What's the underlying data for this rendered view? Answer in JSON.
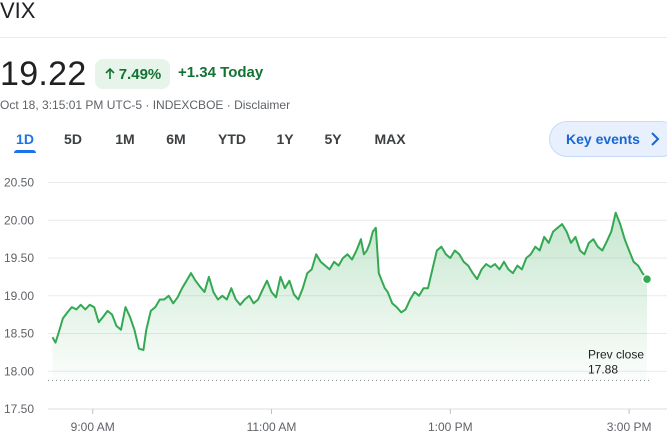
{
  "header": {
    "title": "VIX"
  },
  "quote": {
    "price": "19.22",
    "change_percent": "7.49%",
    "change_today": "+1.34",
    "today_label": "Today",
    "meta": "Oct 18, 3:15:01 PM UTC-5 · INDEXCBOE · Disclaimer"
  },
  "range_tabs": [
    "1D",
    "5D",
    "1M",
    "6M",
    "YTD",
    "1Y",
    "5Y",
    "MAX"
  ],
  "active_tab": "1D",
  "key_events_label": "Key events",
  "colors": {
    "positive": "#137333",
    "line": "#34a853",
    "accent": "#1a73e8"
  },
  "chart_data": {
    "type": "area",
    "x_tick_labels": [
      "9:00 AM",
      "11:00 AM",
      "1:00 PM",
      "3:00 PM"
    ],
    "x_ticks_minutes": [
      570,
      690,
      810,
      930
    ],
    "y_ticks": [
      17.5,
      18.0,
      18.5,
      19.0,
      19.5,
      20.0,
      20.5
    ],
    "y_tick_labels": [
      "17.50",
      "18.00",
      "18.50",
      "19.00",
      "19.50",
      "20.00",
      "20.50"
    ],
    "ylim": [
      17.5,
      20.6
    ],
    "xlim": [
      540,
      944
    ],
    "prev_close": 17.88,
    "prev_close_label": "Prev close",
    "prev_close_value": "17.88",
    "series": [
      {
        "points": [
          [
            543,
            18.45
          ],
          [
            545,
            18.38
          ],
          [
            547,
            18.5
          ],
          [
            550,
            18.7
          ],
          [
            553,
            18.78
          ],
          [
            556,
            18.85
          ],
          [
            559,
            18.82
          ],
          [
            562,
            18.88
          ],
          [
            565,
            18.82
          ],
          [
            568,
            18.88
          ],
          [
            571,
            18.85
          ],
          [
            574,
            18.65
          ],
          [
            577,
            18.72
          ],
          [
            580,
            18.8
          ],
          [
            583,
            18.75
          ],
          [
            586,
            18.6
          ],
          [
            589,
            18.55
          ],
          [
            592,
            18.85
          ],
          [
            595,
            18.72
          ],
          [
            598,
            18.55
          ],
          [
            601,
            18.3
          ],
          [
            604,
            18.28
          ],
          [
            606,
            18.55
          ],
          [
            609,
            18.8
          ],
          [
            612,
            18.85
          ],
          [
            615,
            18.95
          ],
          [
            618,
            18.95
          ],
          [
            621,
            19.0
          ],
          [
            624,
            18.9
          ],
          [
            627,
            18.98
          ],
          [
            630,
            19.1
          ],
          [
            633,
            19.2
          ],
          [
            636,
            19.3
          ],
          [
            639,
            19.2
          ],
          [
            642,
            19.12
          ],
          [
            645,
            19.05
          ],
          [
            648,
            19.25
          ],
          [
            651,
            19.05
          ],
          [
            654,
            18.95
          ],
          [
            657,
            19.0
          ],
          [
            660,
            18.95
          ],
          [
            663,
            19.1
          ],
          [
            666,
            18.95
          ],
          [
            669,
            18.88
          ],
          [
            672,
            18.95
          ],
          [
            675,
            19.0
          ],
          [
            678,
            18.9
          ],
          [
            681,
            18.95
          ],
          [
            684,
            19.08
          ],
          [
            687,
            19.2
          ],
          [
            690,
            19.05
          ],
          [
            693,
            18.98
          ],
          [
            696,
            19.25
          ],
          [
            699,
            19.1
          ],
          [
            702,
            19.2
          ],
          [
            705,
            19.02
          ],
          [
            708,
            18.95
          ],
          [
            711,
            19.1
          ],
          [
            714,
            19.3
          ],
          [
            717,
            19.35
          ],
          [
            720,
            19.55
          ],
          [
            723,
            19.45
          ],
          [
            726,
            19.4
          ],
          [
            729,
            19.35
          ],
          [
            732,
            19.45
          ],
          [
            735,
            19.4
          ],
          [
            738,
            19.5
          ],
          [
            741,
            19.55
          ],
          [
            744,
            19.48
          ],
          [
            747,
            19.6
          ],
          [
            750,
            19.75
          ],
          [
            752,
            19.55
          ],
          [
            754,
            19.6
          ],
          [
            756,
            19.7
          ],
          [
            758,
            19.85
          ],
          [
            760,
            19.9
          ],
          [
            761,
            19.6
          ],
          [
            762,
            19.3
          ],
          [
            764,
            19.2
          ],
          [
            766,
            19.1
          ],
          [
            768,
            19.05
          ],
          [
            771,
            18.9
          ],
          [
            774,
            18.85
          ],
          [
            777,
            18.78
          ],
          [
            780,
            18.82
          ],
          [
            783,
            18.95
          ],
          [
            786,
            19.05
          ],
          [
            789,
            19.0
          ],
          [
            792,
            19.1
          ],
          [
            795,
            19.1
          ],
          [
            798,
            19.35
          ],
          [
            801,
            19.6
          ],
          [
            804,
            19.65
          ],
          [
            807,
            19.55
          ],
          [
            810,
            19.5
          ],
          [
            813,
            19.6
          ],
          [
            816,
            19.55
          ],
          [
            819,
            19.45
          ],
          [
            822,
            19.4
          ],
          [
            825,
            19.3
          ],
          [
            828,
            19.22
          ],
          [
            831,
            19.35
          ],
          [
            834,
            19.42
          ],
          [
            837,
            19.38
          ],
          [
            840,
            19.42
          ],
          [
            843,
            19.35
          ],
          [
            846,
            19.45
          ],
          [
            849,
            19.35
          ],
          [
            852,
            19.3
          ],
          [
            855,
            19.4
          ],
          [
            858,
            19.35
          ],
          [
            861,
            19.5
          ],
          [
            864,
            19.55
          ],
          [
            867,
            19.65
          ],
          [
            870,
            19.6
          ],
          [
            873,
            19.78
          ],
          [
            876,
            19.7
          ],
          [
            879,
            19.85
          ],
          [
            882,
            19.9
          ],
          [
            885,
            19.95
          ],
          [
            888,
            19.85
          ],
          [
            891,
            19.7
          ],
          [
            894,
            19.78
          ],
          [
            897,
            19.6
          ],
          [
            900,
            19.55
          ],
          [
            903,
            19.7
          ],
          [
            906,
            19.75
          ],
          [
            909,
            19.65
          ],
          [
            912,
            19.6
          ],
          [
            915,
            19.72
          ],
          [
            918,
            19.85
          ],
          [
            921,
            20.1
          ],
          [
            924,
            19.95
          ],
          [
            927,
            19.75
          ],
          [
            930,
            19.6
          ],
          [
            933,
            19.45
          ],
          [
            936,
            19.4
          ],
          [
            939,
            19.3
          ],
          [
            942,
            19.22
          ]
        ]
      }
    ]
  }
}
